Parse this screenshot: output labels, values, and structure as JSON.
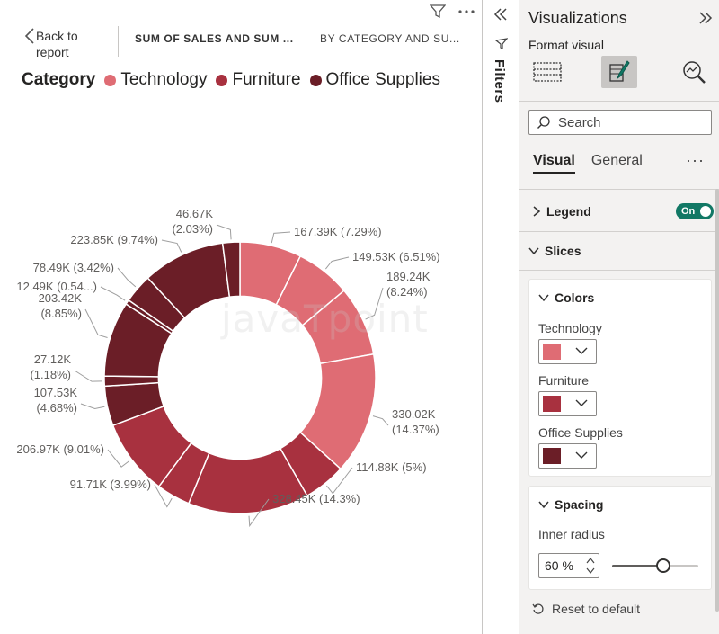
{
  "toolbar": {
    "back_label": "Back to report",
    "breadcrumb_measure": "SUM OF SALES AND SUM ...",
    "breadcrumb_dimension": "BY CATEGORY AND SU..."
  },
  "watermark": "javaTpoint",
  "chart_data": {
    "type": "donut",
    "legend_title": "Category",
    "legend": [
      {
        "name": "Technology",
        "color": "#df6c74"
      },
      {
        "name": "Furniture",
        "color": "#a8313f"
      },
      {
        "name": "Office Supplies",
        "color": "#6b1e27"
      }
    ],
    "inner_radius_percent": 60,
    "slices": [
      {
        "label": "167.39K (7.29%)",
        "value": 167.39,
        "percent": 7.29,
        "category": "Technology"
      },
      {
        "label": "149.53K (6.51%)",
        "value": 149.53,
        "percent": 6.51,
        "category": "Technology"
      },
      {
        "label": "189.24K (8.24%)",
        "value": 189.24,
        "percent": 8.24,
        "category": "Technology"
      },
      {
        "label": "330.02K (14.37%)",
        "value": 330.02,
        "percent": 14.37,
        "category": "Technology"
      },
      {
        "label": "114.88K (5%)",
        "value": 114.88,
        "percent": 5.0,
        "category": "Furniture"
      },
      {
        "label": "328.45K (14.3%)",
        "value": 328.45,
        "percent": 14.3,
        "category": "Furniture"
      },
      {
        "label": "91.71K (3.99%)",
        "value": 91.71,
        "percent": 3.99,
        "category": "Furniture"
      },
      {
        "label": "206.97K (9.01%)",
        "value": 206.97,
        "percent": 9.01,
        "category": "Furniture"
      },
      {
        "label": "107.53K (4.68%)",
        "value": 107.53,
        "percent": 4.68,
        "category": "Office Supplies"
      },
      {
        "label": "27.12K (1.18%)",
        "value": 27.12,
        "percent": 1.18,
        "category": "Office Supplies"
      },
      {
        "label": "203.42K (8.85%)",
        "value": 203.42,
        "percent": 8.85,
        "category": "Office Supplies"
      },
      {
        "label": "12.49K (0.54...)",
        "value": 12.49,
        "percent": 0.54,
        "category": "Office Supplies"
      },
      {
        "label": "78.49K (3.42%)",
        "value": 78.49,
        "percent": 3.42,
        "category": "Office Supplies"
      },
      {
        "label": "223.85K (9.74%)",
        "value": 223.85,
        "percent": 9.74,
        "category": "Office Supplies"
      },
      {
        "label": "46.67K (2.03%)",
        "value": 46.67,
        "percent": 2.03,
        "category": "Office Supplies"
      }
    ]
  },
  "filters": {
    "label": "Filters"
  },
  "pane": {
    "title": "Visualizations",
    "format_label": "Format visual",
    "search_placeholder": "Search",
    "tabs": [
      {
        "label": "Visual"
      },
      {
        "label": "General"
      }
    ],
    "more": "···",
    "legend": {
      "label": "Legend",
      "toggle": "On"
    },
    "slices": {
      "label": "Slices"
    },
    "colors": {
      "label": "Colors",
      "items": [
        {
          "label": "Technology",
          "color": "#df6c74"
        },
        {
          "label": "Furniture",
          "color": "#a8313f"
        },
        {
          "label": "Office Supplies",
          "color": "#6b1e27"
        }
      ]
    },
    "spacing": {
      "label": "Spacing",
      "inner_radius_label": "Inner radius",
      "inner_radius_value": "60 %",
      "inner_radius_fraction": 0.6
    },
    "reset_label": "Reset to default"
  }
}
